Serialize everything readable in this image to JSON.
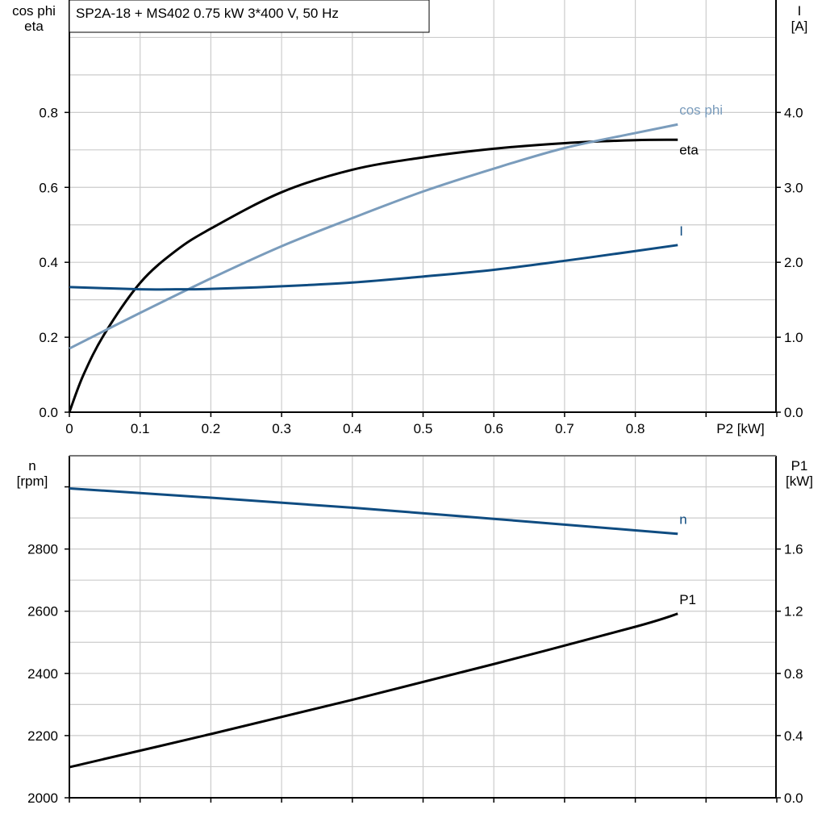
{
  "title": "SP2A-18 + MS402   0.75 kW   3*400 V, 50 Hz",
  "colors": {
    "eta": "#000000",
    "cos_phi": "#7a9cbc",
    "I": "#0f4c81",
    "n": "#0f4c81",
    "P1": "#000000",
    "grid": "#cccccc"
  },
  "chart_data": [
    {
      "type": "line",
      "xlabel": "P2 [kW]",
      "ylabel_left": [
        "cos phi",
        "eta"
      ],
      "ylabel_right": [
        "I",
        "[A]"
      ],
      "xlim": [
        0,
        1.0
      ],
      "ylim_left": [
        0,
        1.1
      ],
      "ylim_right": [
        0,
        5.5
      ],
      "x_ticks": [
        "0",
        "0.1",
        "0.2",
        "0.3",
        "0.4",
        "0.5",
        "0.6",
        "0.7",
        "0.8"
      ],
      "y_left_ticks": [
        "0.0",
        "0.2",
        "0.4",
        "0.6",
        "0.8"
      ],
      "y_right_ticks": [
        "0.0",
        "1.0",
        "2.0",
        "3.0",
        "4.0"
      ],
      "grid": true,
      "series": [
        {
          "name": "eta",
          "axis": "left",
          "x": [
            0,
            0.02,
            0.05,
            0.1,
            0.15,
            0.2,
            0.3,
            0.4,
            0.5,
            0.6,
            0.7,
            0.8,
            0.86
          ],
          "y": [
            0,
            0.1,
            0.21,
            0.345,
            0.43,
            0.49,
            0.587,
            0.647,
            0.68,
            0.703,
            0.718,
            0.726,
            0.727
          ]
        },
        {
          "name": "cos phi",
          "axis": "left",
          "x": [
            0,
            0.1,
            0.2,
            0.3,
            0.4,
            0.5,
            0.6,
            0.7,
            0.8,
            0.86
          ],
          "y": [
            0.17,
            0.265,
            0.357,
            0.443,
            0.518,
            0.589,
            0.65,
            0.705,
            0.745,
            0.768
          ]
        },
        {
          "name": "I",
          "axis": "right",
          "x": [
            0,
            0.1,
            0.15,
            0.2,
            0.3,
            0.4,
            0.5,
            0.6,
            0.7,
            0.8,
            0.86
          ],
          "y": [
            1.67,
            1.64,
            1.64,
            1.645,
            1.68,
            1.73,
            1.81,
            1.9,
            2.02,
            2.15,
            2.23
          ]
        }
      ]
    },
    {
      "type": "line",
      "ylabel_left": [
        "n",
        "[rpm]"
      ],
      "ylabel_right": [
        "P1",
        "[kW]"
      ],
      "xlim": [
        0,
        1.0
      ],
      "ylim_left": [
        2000,
        3100
      ],
      "ylim_right": [
        0,
        2.2
      ],
      "y_left_ticks": [
        "2000",
        "2200",
        "2400",
        "2600",
        "2800"
      ],
      "y_right_ticks": [
        "0.0",
        "0.4",
        "0.8",
        "1.2",
        "1.6"
      ],
      "grid": true,
      "series": [
        {
          "name": "n",
          "axis": "left",
          "x": [
            0,
            0.2,
            0.4,
            0.6,
            0.8,
            0.86
          ],
          "y": [
            2995,
            2965,
            2933,
            2897,
            2860,
            2849
          ]
        },
        {
          "name": "P1",
          "axis": "right",
          "x": [
            0,
            0.2,
            0.4,
            0.6,
            0.8,
            0.86
          ],
          "y": [
            0.197,
            0.41,
            0.63,
            0.86,
            1.1,
            1.184
          ]
        }
      ]
    }
  ]
}
